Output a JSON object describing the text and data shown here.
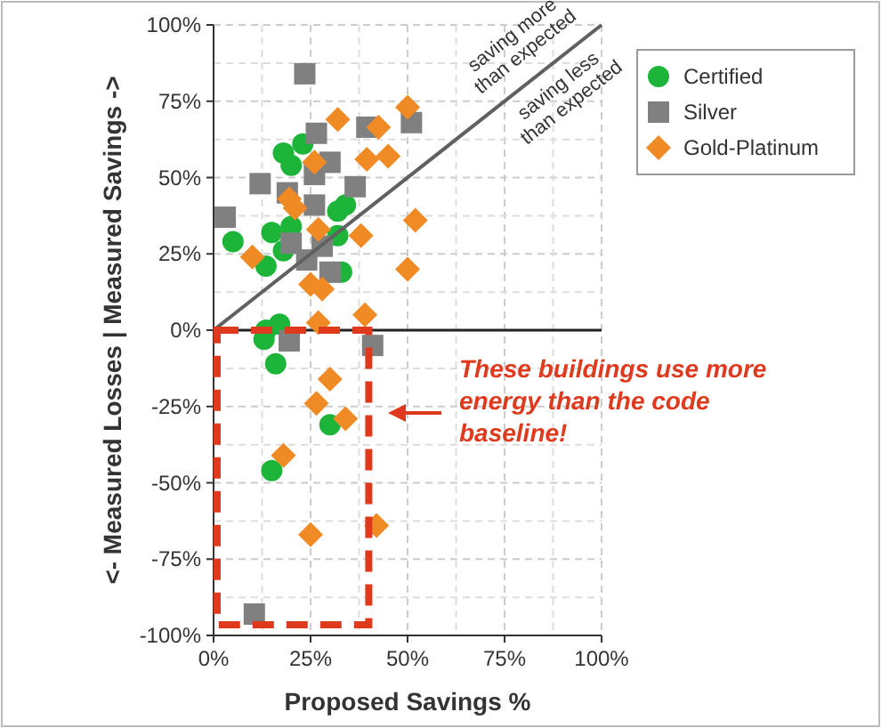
{
  "chart_data": {
    "type": "scatter",
    "xlabel": "Proposed Savings %",
    "ylabel": "<- Measured Losses | Measured Savings ->",
    "xlim": [
      0,
      100
    ],
    "ylim": [
      -100,
      100
    ],
    "xticks": [
      {
        "value": 0,
        "label": "0%"
      },
      {
        "value": 25,
        "label": "25%"
      },
      {
        "value": 50,
        "label": "50%"
      },
      {
        "value": 75,
        "label": "75%"
      },
      {
        "value": 100,
        "label": "100%"
      }
    ],
    "yticks": [
      {
        "value": -100,
        "label": "-100%"
      },
      {
        "value": -75,
        "label": "-75%"
      },
      {
        "value": -50,
        "label": "-50%"
      },
      {
        "value": -25,
        "label": "-25%"
      },
      {
        "value": 0,
        "label": "0%"
      },
      {
        "value": 25,
        "label": "25%"
      },
      {
        "value": 50,
        "label": "50%"
      },
      {
        "value": 75,
        "label": "75%"
      },
      {
        "value": 100,
        "label": "100%"
      }
    ],
    "grid": true,
    "legend": "top right",
    "series": [
      {
        "name": "Certified",
        "color": "#1cb53a",
        "marker": "circle",
        "x": [
          5,
          15,
          13.5,
          18,
          20,
          18,
          23,
          20,
          32,
          34,
          32,
          33,
          17,
          13.5,
          13,
          16,
          30,
          15
        ],
        "values": [
          29,
          32,
          21,
          26,
          34,
          58,
          61,
          54,
          39,
          41,
          31,
          19,
          2,
          0,
          -3,
          -11,
          -31,
          -46
        ]
      },
      {
        "name": "Silver",
        "color": "#808080",
        "marker": "square",
        "x": [
          23.5,
          3,
          12,
          26.5,
          39.5,
          51,
          30,
          26,
          36.5,
          26,
          20,
          24,
          28,
          30,
          19,
          19.5,
          41,
          10.5
        ],
        "values": [
          84,
          37,
          48,
          64.5,
          66.5,
          68,
          55,
          51,
          47,
          41,
          28.5,
          23,
          27.5,
          19,
          45,
          -3.5,
          -5,
          -93
        ]
      },
      {
        "name": "Gold-Platinum",
        "color": "#f08a24",
        "marker": "diamond",
        "x": [
          50,
          32,
          42.5,
          39.5,
          45,
          26,
          19.5,
          21,
          27,
          38,
          52,
          10,
          50,
          25,
          28,
          39,
          27,
          30,
          26.5,
          34,
          18,
          25,
          42
        ],
        "values": [
          73,
          69,
          66.5,
          56,
          57,
          55,
          43,
          40,
          33,
          31,
          36,
          24,
          20,
          15,
          13.5,
          5,
          2.5,
          -16,
          -24,
          -29,
          -41,
          -67,
          -64
        ]
      },
      {
        "type": "line",
        "color": "#606060",
        "x": [
          0,
          100
        ],
        "values": [
          0,
          100
        ]
      }
    ],
    "ref_lines": [
      {
        "axis": "y",
        "value": 0,
        "color": "#222222"
      }
    ],
    "annotations": [
      "saving more than expected",
      "saving less than expected",
      "These buildings use more energy than the code baseline!"
    ]
  }
}
